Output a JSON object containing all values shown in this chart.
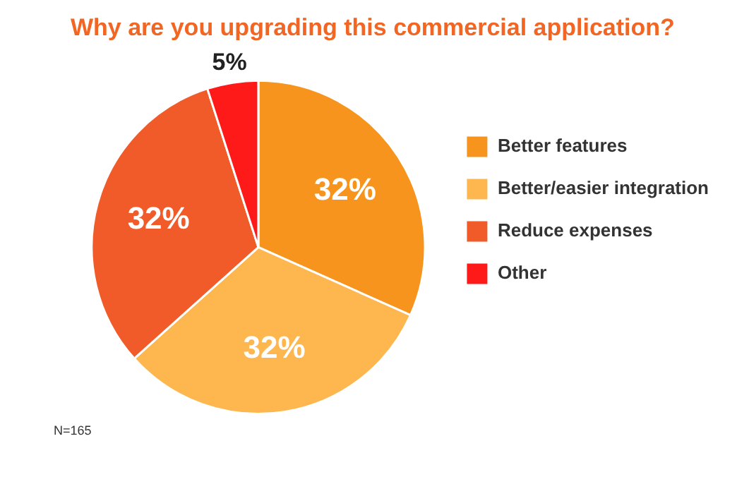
{
  "chart_data": {
    "type": "pie",
    "title": "Why are you upgrading this commercial application?",
    "categories": [
      "Better features",
      "Better/easier integration",
      "Reduce expenses",
      "Other"
    ],
    "values": [
      32,
      32,
      32,
      5
    ],
    "colors": [
      "#f7941d",
      "#fdb74e",
      "#f15a29",
      "#ff1a1a"
    ],
    "value_labels": [
      "32%",
      "32%",
      "32%",
      "5%"
    ],
    "legend": "right",
    "annotations": [
      "N=165"
    ]
  }
}
